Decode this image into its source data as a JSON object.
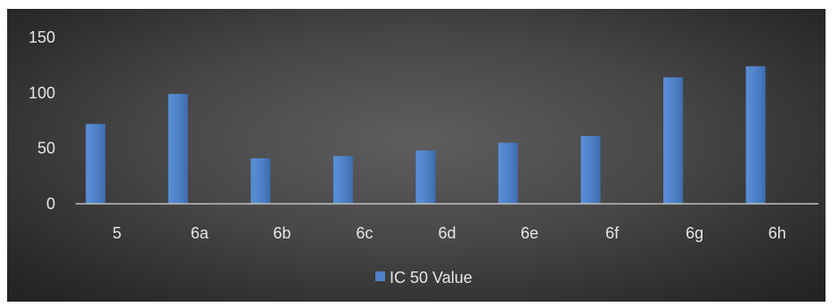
{
  "chart_data": {
    "type": "bar",
    "categories": [
      "5",
      "6a",
      "6b",
      "6c",
      "6d",
      "6e",
      "6f",
      "6g",
      "6h"
    ],
    "series": [
      {
        "name": "IC 50 Value",
        "values": [
          72,
          99,
          41,
          43,
          48,
          55,
          61,
          114,
          124
        ],
        "color": "#4f81c7"
      }
    ],
    "title": "",
    "xlabel": "",
    "ylabel": "",
    "ylim": [
      0,
      150
    ],
    "yticks": [
      0,
      50,
      100,
      150
    ],
    "grid": false,
    "legend": "bottom",
    "background": "#4a4a4a"
  }
}
